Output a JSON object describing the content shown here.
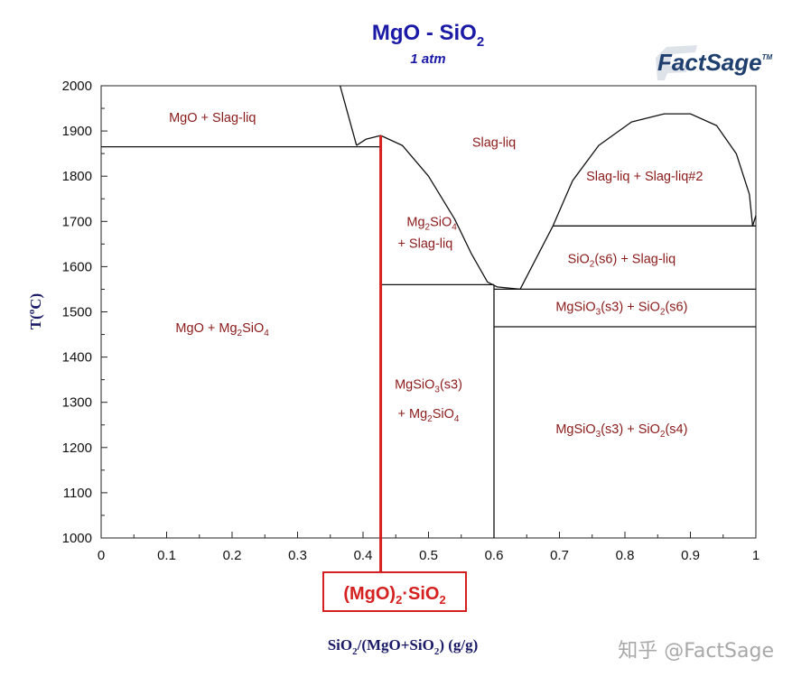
{
  "chart_data": {
    "type": "phase-diagram",
    "title": "MgO - SiO",
    "title_sub": "2",
    "subtitle": "1 atm",
    "brand": {
      "logo_text": "FactSage",
      "logo_mark": "TM"
    },
    "ylabel": {
      "base": "T(",
      "degree": "o",
      "unit": "C)"
    },
    "xlabel": {
      "p1": "SiO",
      "s1": "2",
      "p2": "/(MgO+SiO",
      "s2": "2",
      "p3": ") (g/g)"
    },
    "xlim": [
      0,
      1
    ],
    "ylim": [
      1000,
      2000
    ],
    "xticks": [
      "0",
      "0.1",
      "0.2",
      "0.3",
      "0.4",
      "0.5",
      "0.6",
      "0.7",
      "0.8",
      "0.9",
      "1"
    ],
    "yticks": [
      "1000",
      "1100",
      "1200",
      "1300",
      "1400",
      "1500",
      "1600",
      "1700",
      "1800",
      "1900",
      "2000"
    ],
    "phase_boundaries": [
      {
        "name": "MgO liquidus",
        "points": [
          [
            0.365,
            2000
          ],
          [
            0.39,
            1868
          ]
        ]
      },
      {
        "name": "Mg2SiO4 liquidus",
        "points": [
          [
            0.39,
            1868
          ],
          [
            0.405,
            1882
          ],
          [
            0.427,
            1890
          ],
          [
            0.46,
            1868
          ],
          [
            0.5,
            1800
          ],
          [
            0.54,
            1705
          ],
          [
            0.565,
            1630
          ],
          [
            0.59,
            1566
          ],
          [
            0.605,
            1555
          ],
          [
            0.64,
            1550
          ]
        ]
      },
      {
        "name": "SiO2 liquidus",
        "points": [
          [
            0.64,
            1550
          ],
          [
            0.665,
            1620
          ],
          [
            0.69,
            1690
          ]
        ]
      },
      {
        "name": "Miscibility gap",
        "points": [
          [
            0.69,
            1690
          ],
          [
            0.72,
            1790
          ],
          [
            0.76,
            1868
          ],
          [
            0.81,
            1920
          ],
          [
            0.86,
            1938
          ],
          [
            0.9,
            1938
          ],
          [
            0.94,
            1912
          ],
          [
            0.97,
            1850
          ],
          [
            0.99,
            1760
          ],
          [
            0.995,
            1690
          ]
        ]
      },
      {
        "name": "Right edge liquidus",
        "points": [
          [
            0.995,
            1690
          ],
          [
            1.0,
            1713
          ]
        ]
      },
      {
        "name": "MgO-Mg2SiO4 eutectic line",
        "points": [
          [
            0.0,
            1865
          ],
          [
            0.427,
            1865
          ]
        ]
      },
      {
        "name": "MgSiO3 peritectic line",
        "points": [
          [
            0.427,
            1560
          ],
          [
            0.6,
            1560
          ]
        ]
      },
      {
        "name": "SiO2 eutectic line",
        "points": [
          [
            0.6,
            1550
          ],
          [
            1.0,
            1550
          ]
        ]
      },
      {
        "name": "Monotectic line",
        "points": [
          [
            0.69,
            1690
          ],
          [
            1.0,
            1690
          ]
        ]
      },
      {
        "name": "SiO2 s4-s6 transition",
        "points": [
          [
            0.6,
            1467
          ],
          [
            1.0,
            1467
          ]
        ]
      },
      {
        "name": "MgSiO3 composition",
        "points": [
          [
            0.6,
            1000
          ],
          [
            0.6,
            1560
          ]
        ]
      }
    ],
    "region_labels": [
      {
        "text": "MgO + Slag-liq",
        "x": 0.17,
        "y": 1920
      },
      {
        "text": "Slag-liq",
        "x": 0.6,
        "y": 1865
      },
      {
        "text": "Slag-liq + Slag-liq#2",
        "x": 0.83,
        "y": 1790
      },
      {
        "rich": [
          "Mg",
          "2",
          "SiO",
          "4"
        ],
        "x": 0.505,
        "y": 1690
      },
      {
        "text": "+ Slag-liq",
        "x": 0.495,
        "y": 1642
      },
      {
        "rich": [
          "SiO",
          "2",
          "(s6) + Slag-liq"
        ],
        "x": 0.795,
        "y": 1608
      },
      {
        "rich": [
          "MgSiO",
          "3",
          "(s3) + SiO",
          "2",
          "(s6)"
        ],
        "x": 0.795,
        "y": 1502
      },
      {
        "rich": [
          "MgO + Mg",
          "2",
          "SiO",
          "4"
        ],
        "x": 0.185,
        "y": 1455
      },
      {
        "rich": [
          "MgSiO",
          "3",
          "(s3)"
        ],
        "x": 0.5,
        "y": 1330
      },
      {
        "rich": [
          "+ Mg",
          "2",
          "SiO",
          "4"
        ],
        "x": 0.5,
        "y": 1265
      },
      {
        "rich": [
          "MgSiO",
          "3",
          "(s3) + SiO",
          "2",
          "(s4)"
        ],
        "x": 0.795,
        "y": 1232
      }
    ],
    "highlight": {
      "composition": 0.427,
      "label": {
        "p1": "(MgO)",
        "s1": "2",
        "p2": "·SiO",
        "s2": "2"
      },
      "color": "#d62020"
    },
    "watermark": "知乎 @FactSage"
  }
}
